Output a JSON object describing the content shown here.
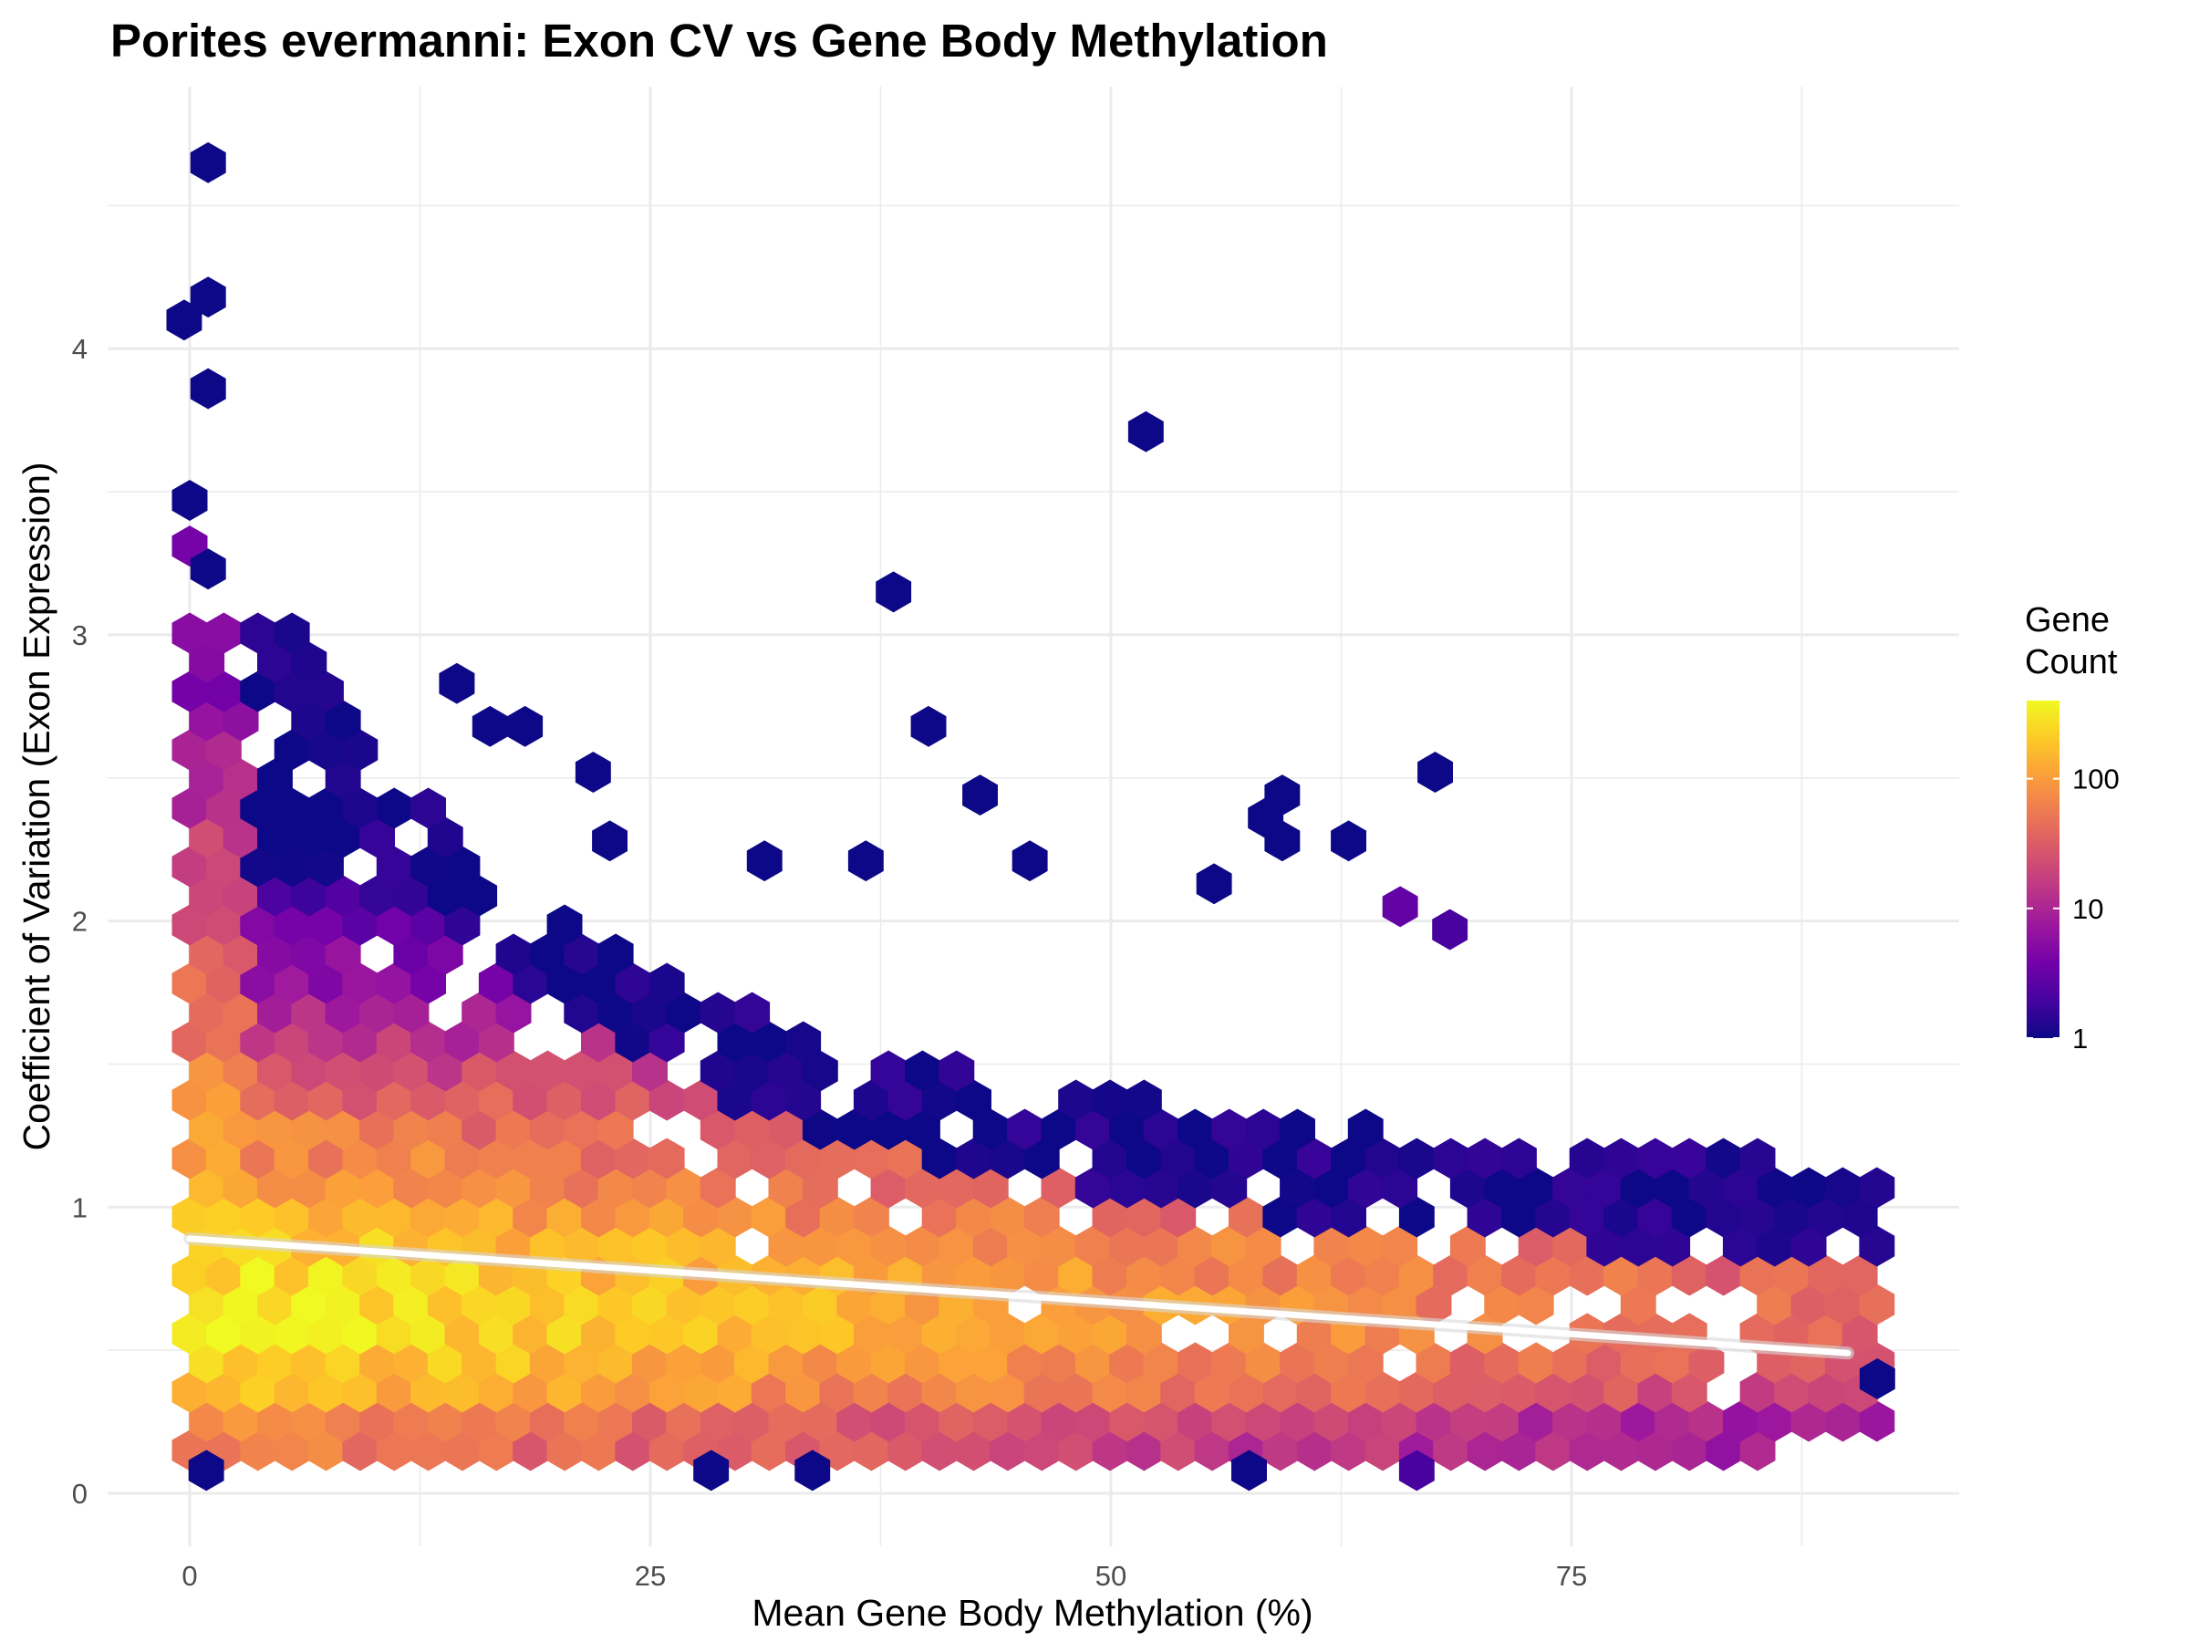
{
  "chart_data": {
    "type": "heatmap",
    "subtype": "hexbin",
    "title": "Porites evermanni: Exon CV vs Gene Body Methylation",
    "xlabel": "Mean Gene Body Methylation (%)",
    "ylabel": "Coefficient of Variation (Exon Expression)",
    "xlim": [
      -4,
      96
    ],
    "ylim": [
      -0.25,
      4.85
    ],
    "x_ticks": [
      0,
      25,
      50,
      75
    ],
    "x_tick_labels": [
      "0",
      "25",
      "50",
      "75"
    ],
    "y_ticks": [
      0,
      1,
      2,
      3,
      4
    ],
    "y_tick_labels": [
      "0",
      "1",
      "2",
      "3",
      "4"
    ],
    "grid": true,
    "legend": {
      "title_lines": [
        "Gene",
        "Count"
      ],
      "position": "right",
      "scale": "log",
      "range": [
        1,
        400
      ],
      "ticks": [
        1,
        10,
        100
      ],
      "tick_labels": [
        "1",
        "10",
        "100"
      ],
      "colormap": "plasma",
      "stops": [
        "#0d0887",
        "#46039f",
        "#7201a8",
        "#9c179e",
        "#bd3786",
        "#d8576b",
        "#ed7953",
        "#fb9f3a",
        "#fdca26",
        "#f0f921"
      ]
    },
    "trend_line": {
      "type": "linear",
      "color": "#ffffff",
      "points": [
        [
          0,
          0.89
        ],
        [
          90,
          0.49
        ]
      ]
    },
    "hex_bins": {
      "x_width": 1.85,
      "y_step": 0.102,
      "dense_region": {
        "x_min": 0,
        "x_max": 92,
        "y_min": 0.15,
        "peak_counts_at_x0": [
          [
            0.25,
            80
          ],
          [
            0.35,
            180
          ],
          [
            0.45,
            250
          ],
          [
            0.55,
            320
          ],
          [
            0.65,
            330
          ],
          [
            0.75,
            300
          ],
          [
            0.85,
            260
          ],
          [
            0.95,
            180
          ],
          [
            1.05,
            140
          ],
          [
            1.15,
            120
          ],
          [
            1.25,
            110
          ],
          [
            1.35,
            90
          ],
          [
            1.45,
            70
          ],
          [
            1.55,
            60
          ],
          [
            1.65,
            50
          ],
          [
            1.75,
            40
          ],
          [
            1.85,
            35
          ],
          [
            1.95,
            30
          ],
          [
            2.05,
            25
          ],
          [
            2.15,
            22
          ],
          [
            2.25,
            18
          ],
          [
            2.35,
            15
          ],
          [
            2.45,
            12
          ],
          [
            2.55,
            10
          ],
          [
            2.65,
            8
          ],
          [
            2.75,
            7
          ],
          [
            2.85,
            5
          ],
          [
            2.95,
            4
          ],
          [
            3.05,
            5
          ],
          [
            3.15,
            6
          ],
          [
            3.3,
            8
          ]
        ]
      },
      "outliers": [
        {
          "x": -0.3,
          "y": 4.1,
          "count": 1
        },
        {
          "x": 1.0,
          "y": 4.65,
          "count": 1
        },
        {
          "x": 1.0,
          "y": 4.18,
          "count": 1
        },
        {
          "x": 1.0,
          "y": 3.86,
          "count": 1
        },
        {
          "x": 0.0,
          "y": 3.47,
          "count": 1
        },
        {
          "x": 0.0,
          "y": 3.31,
          "count": 4
        },
        {
          "x": 1.0,
          "y": 3.23,
          "count": 1
        },
        {
          "x": 14.5,
          "y": 2.83,
          "count": 1
        },
        {
          "x": 16.3,
          "y": 2.68,
          "count": 1
        },
        {
          "x": 18.2,
          "y": 2.68,
          "count": 1
        },
        {
          "x": 21.9,
          "y": 2.52,
          "count": 1
        },
        {
          "x": 22.8,
          "y": 2.28,
          "count": 1
        },
        {
          "x": 31.2,
          "y": 2.21,
          "count": 1
        },
        {
          "x": 36.7,
          "y": 2.21,
          "count": 1
        },
        {
          "x": 38.2,
          "y": 3.15,
          "count": 1
        },
        {
          "x": 40.1,
          "y": 2.68,
          "count": 1
        },
        {
          "x": 42.9,
          "y": 2.44,
          "count": 1
        },
        {
          "x": 45.6,
          "y": 2.21,
          "count": 1
        },
        {
          "x": 51.9,
          "y": 3.71,
          "count": 1
        },
        {
          "x": 55.6,
          "y": 2.13,
          "count": 1
        },
        {
          "x": 58.4,
          "y": 2.36,
          "count": 1
        },
        {
          "x": 59.3,
          "y": 2.44,
          "count": 1
        },
        {
          "x": 59.3,
          "y": 2.28,
          "count": 1
        },
        {
          "x": 62.9,
          "y": 2.28,
          "count": 1
        },
        {
          "x": 65.7,
          "y": 2.05,
          "count": 3
        },
        {
          "x": 67.6,
          "y": 2.52,
          "count": 1
        },
        {
          "x": 68.4,
          "y": 1.97,
          "count": 2
        },
        {
          "x": 91.6,
          "y": 0.4,
          "count": 1
        },
        {
          "x": 0.9,
          "y": 0.08,
          "count": 1
        },
        {
          "x": 28.3,
          "y": 0.08,
          "count": 1
        },
        {
          "x": 33.8,
          "y": 0.08,
          "count": 1
        },
        {
          "x": 57.5,
          "y": 0.08,
          "count": 1
        },
        {
          "x": 66.6,
          "y": 0.08,
          "count": 2
        }
      ]
    }
  }
}
